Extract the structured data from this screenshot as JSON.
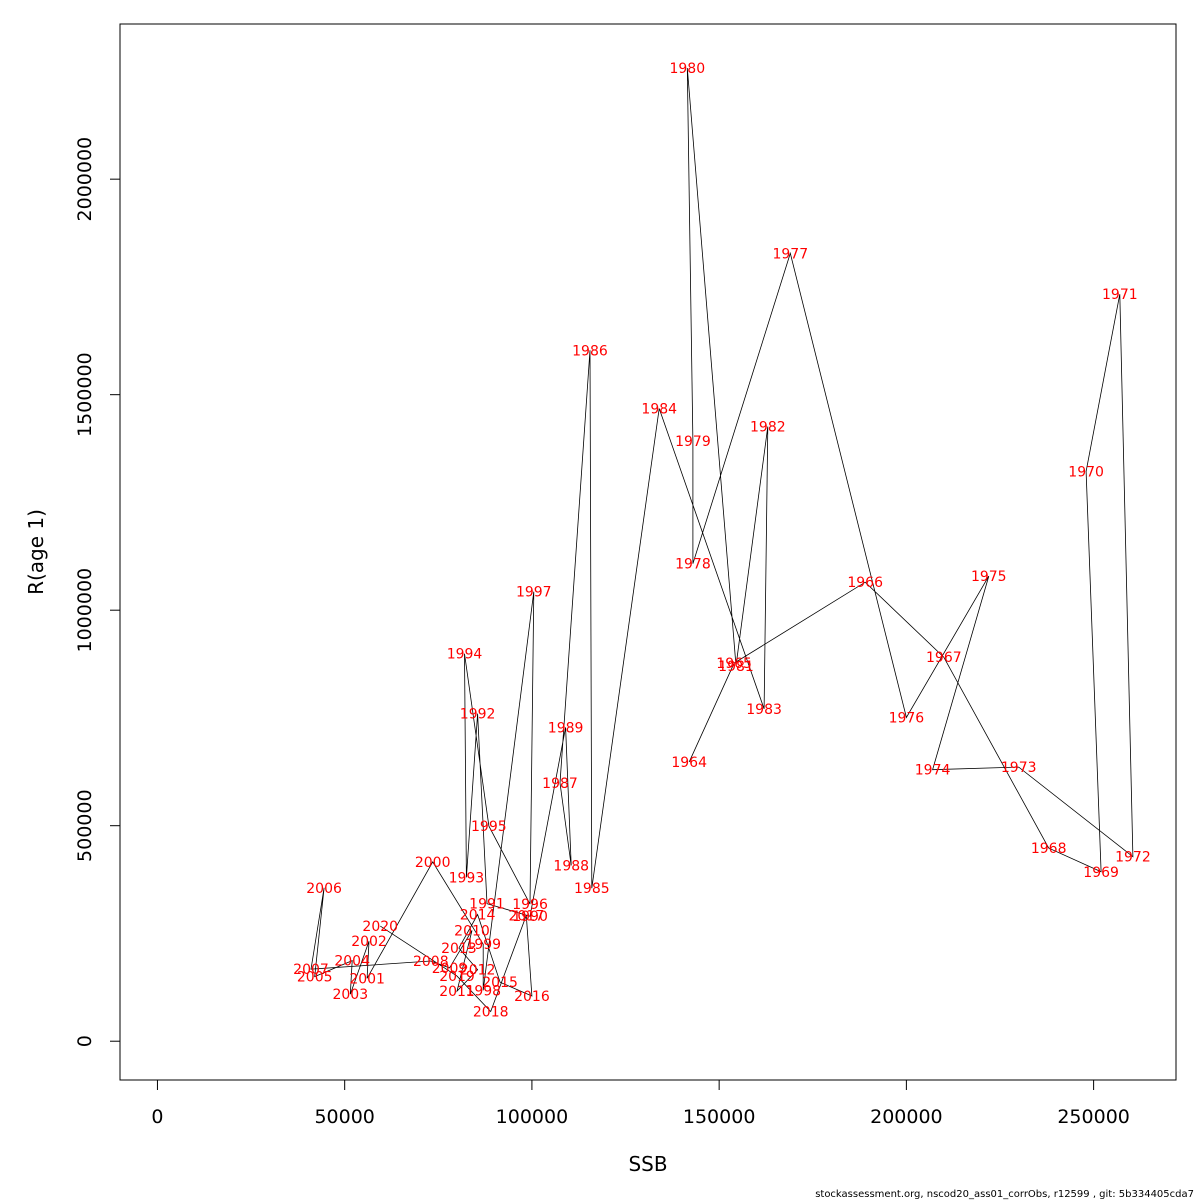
{
  "chart_data": {
    "type": "line",
    "xlabel": "SSB",
    "ylabel": "R(age 1)",
    "xlim": [
      -10000,
      272000
    ],
    "ylim": [
      -90000,
      2360000
    ],
    "xticks": [
      0,
      50000,
      100000,
      150000,
      200000,
      250000
    ],
    "xtick_labels": [
      "0",
      "50000",
      "100000",
      "150000",
      "200000",
      "250000"
    ],
    "yticks": [
      0,
      500000,
      1000000,
      1500000,
      2000000
    ],
    "ytick_labels": [
      "0",
      "500000",
      "1000000",
      "1500000",
      "2000000"
    ],
    "line_color": "#000000",
    "label_color": "#ff0000",
    "grid": false,
    "points": [
      {
        "year": "1964",
        "x": 142000,
        "y": 648000
      },
      {
        "year": "1965",
        "x": 154000,
        "y": 877000
      },
      {
        "year": "1966",
        "x": 189000,
        "y": 1065000
      },
      {
        "year": "1967",
        "x": 210000,
        "y": 891000
      },
      {
        "year": "1968",
        "x": 238000,
        "y": 448000
      },
      {
        "year": "1969",
        "x": 252000,
        "y": 393000
      },
      {
        "year": "1970",
        "x": 248000,
        "y": 1322000
      },
      {
        "year": "1971",
        "x": 257000,
        "y": 1733000
      },
      {
        "year": "1972",
        "x": 260500,
        "y": 428000
      },
      {
        "year": "1973",
        "x": 230000,
        "y": 636000
      },
      {
        "year": "1974",
        "x": 207000,
        "y": 630000
      },
      {
        "year": "1975",
        "x": 222000,
        "y": 1079000
      },
      {
        "year": "1976",
        "x": 200000,
        "y": 751000
      },
      {
        "year": "1977",
        "x": 169000,
        "y": 1828000
      },
      {
        "year": "1978",
        "x": 143000,
        "y": 1108000
      },
      {
        "year": "1979",
        "x": 143000,
        "y": 1392000
      },
      {
        "year": "1980",
        "x": 141500,
        "y": 2258000
      },
      {
        "year": "1981",
        "x": 154500,
        "y": 871000
      },
      {
        "year": "1982",
        "x": 163000,
        "y": 1426000
      },
      {
        "year": "1983",
        "x": 162000,
        "y": 771000
      },
      {
        "year": "1984",
        "x": 134000,
        "y": 1468000
      },
      {
        "year": "1985",
        "x": 116000,
        "y": 355000
      },
      {
        "year": "1986",
        "x": 115500,
        "y": 1603000
      },
      {
        "year": "1987",
        "x": 107500,
        "y": 599000
      },
      {
        "year": "1988",
        "x": 110500,
        "y": 408000
      },
      {
        "year": "1989",
        "x": 109000,
        "y": 728000
      },
      {
        "year": "1990",
        "x": 99500,
        "y": 290000
      },
      {
        "year": "1991",
        "x": 88000,
        "y": 319000
      },
      {
        "year": "1992",
        "x": 85500,
        "y": 760000
      },
      {
        "year": "1993",
        "x": 82500,
        "y": 380000
      },
      {
        "year": "1994",
        "x": 82000,
        "y": 899000
      },
      {
        "year": "1995",
        "x": 88500,
        "y": 499000
      },
      {
        "year": "1996",
        "x": 99500,
        "y": 318000
      },
      {
        "year": "1997",
        "x": 100500,
        "y": 1043000
      },
      {
        "year": "1998",
        "x": 87000,
        "y": 118000
      },
      {
        "year": "1999",
        "x": 87000,
        "y": 225000
      },
      {
        "year": "2000",
        "x": 73500,
        "y": 416000
      },
      {
        "year": "2001",
        "x": 56000,
        "y": 146000
      },
      {
        "year": "2002",
        "x": 56500,
        "y": 232000
      },
      {
        "year": "2003",
        "x": 51500,
        "y": 109000
      },
      {
        "year": "2004",
        "x": 52000,
        "y": 187000
      },
      {
        "year": "2005",
        "x": 42000,
        "y": 150000
      },
      {
        "year": "2006",
        "x": 44500,
        "y": 356000
      },
      {
        "year": "2007",
        "x": 41000,
        "y": 167000
      },
      {
        "year": "2008",
        "x": 73000,
        "y": 186000
      },
      {
        "year": "2009",
        "x": 78000,
        "y": 170000
      },
      {
        "year": "2010",
        "x": 84000,
        "y": 257000
      },
      {
        "year": "2011",
        "x": 80000,
        "y": 116000
      },
      {
        "year": "2012",
        "x": 85500,
        "y": 166000
      },
      {
        "year": "2013",
        "x": 80500,
        "y": 216000
      },
      {
        "year": "2014",
        "x": 85500,
        "y": 294000
      },
      {
        "year": "2015",
        "x": 91500,
        "y": 137000
      },
      {
        "year": "2016",
        "x": 100000,
        "y": 105000
      },
      {
        "year": "2017",
        "x": 98500,
        "y": 292000
      },
      {
        "year": "2018",
        "x": 89000,
        "y": 69000
      },
      {
        "year": "2019",
        "x": 80000,
        "y": 151000
      },
      {
        "year": "2020",
        "x": 59500,
        "y": 267000
      }
    ]
  },
  "footer": "stockassessment.org, nscod20_ass01_corrObs, r12599 , git: 5b334405cda7"
}
